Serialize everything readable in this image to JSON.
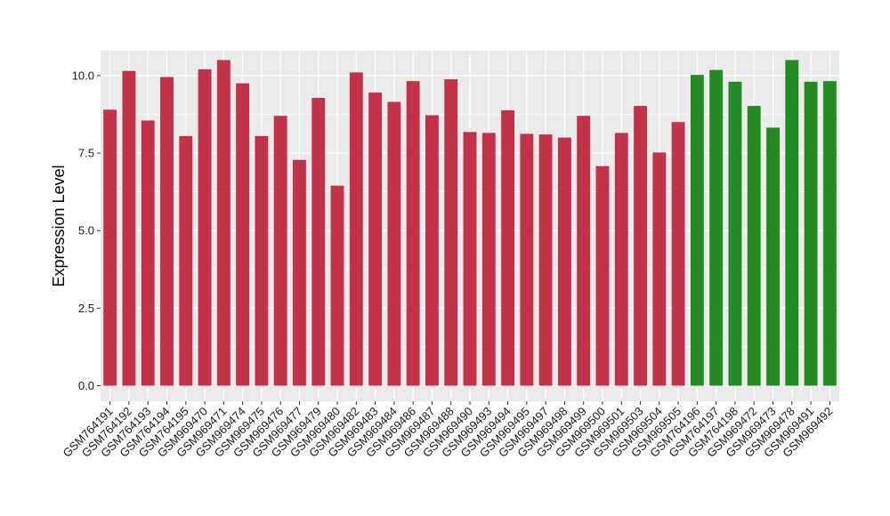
{
  "chart_data": {
    "type": "bar",
    "title": "",
    "xlabel": "",
    "ylabel": "Expression Level",
    "ylim": [
      -0.5,
      10.8
    ],
    "yticks": [
      0.0,
      2.5,
      5.0,
      7.5,
      10.0
    ],
    "ytick_labels": [
      "0.0",
      "2.5",
      "5.0",
      "7.5",
      "10.0"
    ],
    "grid": true,
    "legend": "none",
    "categories": [
      "GSM764191",
      "GSM764192",
      "GSM764193",
      "GSM764194",
      "GSM764195",
      "GSM969470",
      "GSM969471",
      "GSM969474",
      "GSM969475",
      "GSM969476",
      "GSM969477",
      "GSM969479",
      "GSM969480",
      "GSM969482",
      "GSM969483",
      "GSM969484",
      "GSM969486",
      "GSM969487",
      "GSM969488",
      "GSM969490",
      "GSM969493",
      "GSM969494",
      "GSM969495",
      "GSM969497",
      "GSM969498",
      "GSM969499",
      "GSM969500",
      "GSM969501",
      "GSM969503",
      "GSM969504",
      "GSM969505",
      "GSM764196",
      "GSM764197",
      "GSM764198",
      "GSM969472",
      "GSM969473",
      "GSM969478",
      "GSM969491",
      "GSM969492"
    ],
    "values": [
      8.9,
      10.15,
      8.55,
      9.95,
      8.05,
      10.2,
      10.5,
      9.75,
      8.05,
      8.7,
      7.28,
      9.28,
      6.45,
      10.1,
      9.45,
      9.15,
      9.82,
      8.72,
      9.88,
      8.18,
      8.15,
      8.88,
      8.12,
      8.1,
      8.0,
      8.7,
      7.08,
      8.15,
      9.02,
      7.52,
      8.5,
      10.02,
      10.18,
      9.8,
      9.02,
      8.32,
      10.5,
      9.8,
      9.82
    ],
    "groups": [
      "group1",
      "group1",
      "group1",
      "group1",
      "group1",
      "group1",
      "group1",
      "group1",
      "group1",
      "group1",
      "group1",
      "group1",
      "group1",
      "group1",
      "group1",
      "group1",
      "group1",
      "group1",
      "group1",
      "group1",
      "group1",
      "group1",
      "group1",
      "group1",
      "group1",
      "group1",
      "group1",
      "group1",
      "group1",
      "group1",
      "group1",
      "group2",
      "group2",
      "group2",
      "group2",
      "group2",
      "group2",
      "group2",
      "group2"
    ],
    "colors": {
      "group1": "#c2334a",
      "group2": "#238b23",
      "panel_background": "#ebebeb",
      "grid": "#ffffff"
    }
  }
}
